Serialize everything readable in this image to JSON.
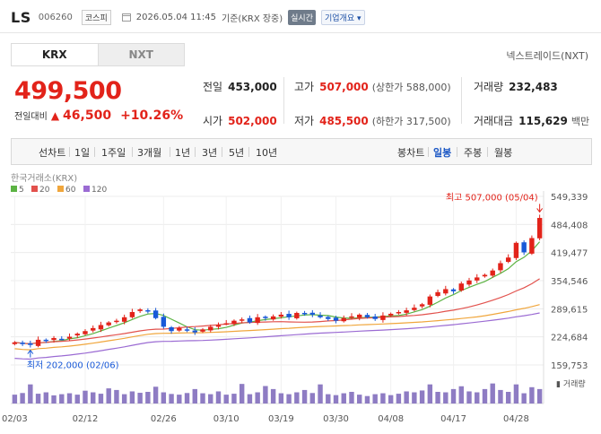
{
  "header": {
    "name": "LS",
    "code": "006260",
    "market": "코스피",
    "timestamp": "2026.05.04 11:45",
    "basis": "기준(KRX 장중)",
    "realtime_label": "실시간",
    "corp_info_label": "기업개요"
  },
  "exchange_tabs": [
    {
      "label": "KRX",
      "active": true
    },
    {
      "label": "NXT",
      "active": false
    }
  ],
  "nxt_link": "넥스트레이드(NXT)",
  "price": {
    "current": "499,500",
    "change_label": "전일대비",
    "change_amount": "46,500",
    "change_pct": "+10.26%"
  },
  "stats": {
    "prev_close": {
      "label": "전일",
      "value": "453,000"
    },
    "open": {
      "label": "시가",
      "value": "502,000"
    },
    "high": {
      "label": "고가",
      "value": "507,000",
      "sub": "(상한가 588,000)"
    },
    "low": {
      "label": "저가",
      "value": "485,500",
      "sub": "(하한가 317,500)"
    },
    "volume": {
      "label": "거래량",
      "value": "232,483"
    },
    "amount": {
      "label": "거래대금",
      "value": "115,629",
      "unit": "백만"
    }
  },
  "chart_modes": [
    "선차트",
    "1일",
    "1주일",
    "3개월",
    "1년",
    "3년",
    "5년",
    "10년"
  ],
  "candle_modes": [
    {
      "label": "봉차트",
      "active": false
    },
    {
      "label": "일봉",
      "active": true
    },
    {
      "label": "주봉",
      "active": false
    },
    {
      "label": "월봉",
      "active": false
    }
  ],
  "colors": {
    "up": "#e2231a",
    "down": "#1859d8",
    "ma5": "#5cb343",
    "ma20": "#e2514c",
    "ma60": "#f0a63c",
    "ma120": "#9b6bd3",
    "volume": "#8e7cc3"
  },
  "chart_data": {
    "type": "candlestick",
    "source": "한국거래소(KRX)",
    "legend": [
      "5",
      "20",
      "60",
      "120"
    ],
    "y_ticks": [
      "549,339",
      "484,408",
      "419,477",
      "354,546",
      "289,615",
      "224,684",
      "159,753"
    ],
    "ylim": [
      159753,
      549339
    ],
    "x_ticks": [
      "02/03",
      "02/12",
      "02/26",
      "03/10",
      "03/19",
      "03/30",
      "04/08",
      "04/17",
      "04/28"
    ],
    "max_label": "최고 507,000 (05/04)",
    "min_label": "최저 202,000 (02/06)",
    "volume_label": "거래량",
    "closes": [
      212000,
      208000,
      206000,
      218000,
      215000,
      222000,
      220000,
      225000,
      232000,
      238000,
      245000,
      252000,
      258000,
      262000,
      270000,
      282000,
      288000,
      285000,
      268000,
      248000,
      238000,
      245000,
      240000,
      235000,
      242000,
      248000,
      252000,
      256000,
      262000,
      265000,
      258000,
      270000,
      268000,
      272000,
      276000,
      270000,
      280000,
      278000,
      276000,
      270000,
      266000,
      262000,
      268000,
      272000,
      276000,
      270000,
      266000,
      274000,
      278000,
      282000,
      286000,
      292000,
      300000,
      318000,
      328000,
      335000,
      330000,
      348000,
      355000,
      362000,
      368000,
      378000,
      395000,
      408000,
      442000,
      420000,
      453000,
      499500
    ],
    "volumes": [
      0.38,
      0.45,
      0.82,
      0.42,
      0.48,
      0.35,
      0.4,
      0.44,
      0.38,
      0.55,
      0.48,
      0.42,
      0.65,
      0.58,
      0.4,
      0.52,
      0.46,
      0.5,
      0.72,
      0.48,
      0.41,
      0.38,
      0.45,
      0.62,
      0.44,
      0.4,
      0.52,
      0.38,
      0.42,
      0.84,
      0.4,
      0.48,
      0.75,
      0.62,
      0.44,
      0.4,
      0.48,
      0.58,
      0.45,
      0.82,
      0.4,
      0.36,
      0.44,
      0.5,
      0.38,
      0.32,
      0.4,
      0.44,
      0.36,
      0.42,
      0.52,
      0.48,
      0.56,
      0.82,
      0.5,
      0.48,
      0.62,
      0.74,
      0.52,
      0.48,
      0.62,
      0.86,
      0.58,
      0.5,
      0.82,
      0.44,
      0.7,
      0.62
    ]
  }
}
